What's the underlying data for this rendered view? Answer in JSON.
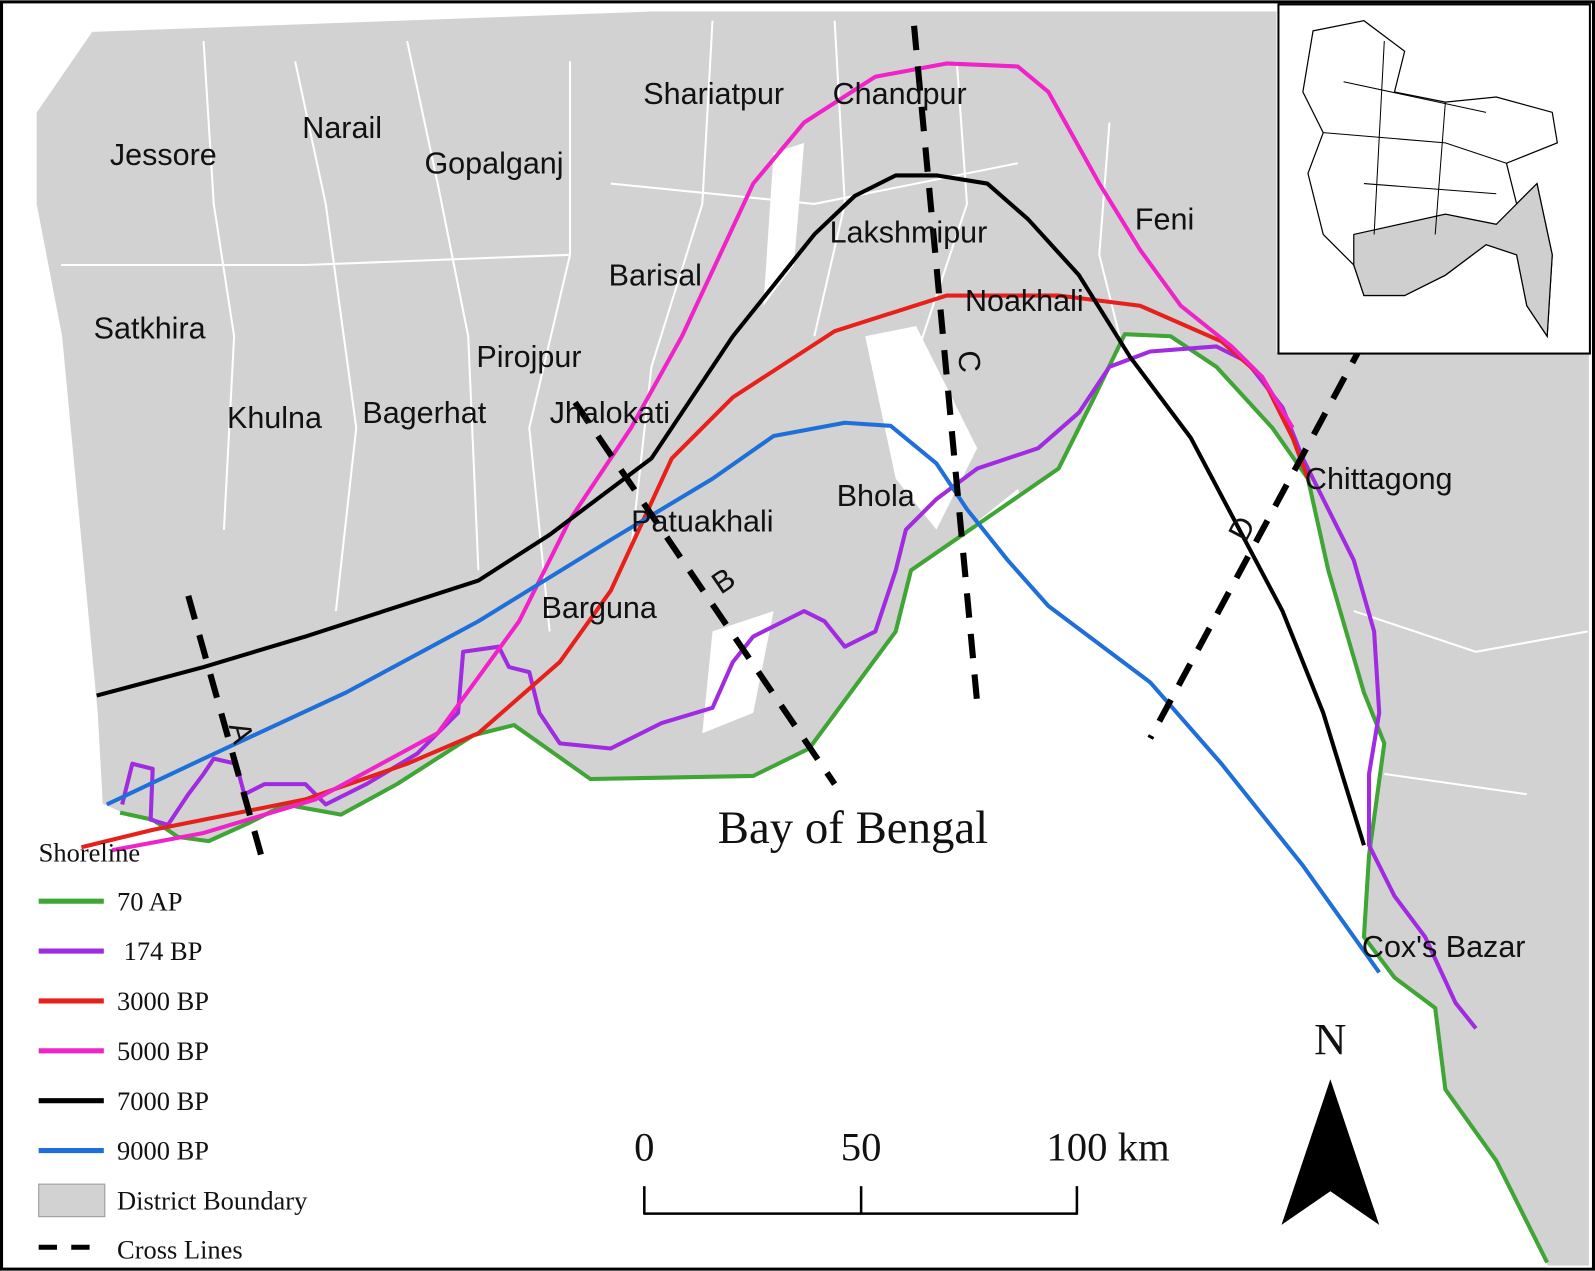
{
  "map": {
    "districts": [
      "Jessore",
      "Narail",
      "Gopalganj",
      "Shariatpur",
      "Chandpur",
      "Lakshmipur",
      "Feni",
      "Barisal",
      "Noakhali",
      "Satkhira",
      "Pirojpur",
      "Khulna",
      "Bagerhat",
      "Jhalokati",
      "Chittagong",
      "Bhola",
      "Patuakhali",
      "Barguna",
      "Cox's Bazar"
    ],
    "cross_lines": [
      "A",
      "B",
      "C",
      "D"
    ],
    "sea_label": "Bay of Bengal",
    "legend": {
      "title": "Shoreline",
      "items": [
        {
          "label": "70 AP",
          "color": "#3fa535"
        },
        {
          "label": " 174 BP",
          "color": "#a02be0"
        },
        {
          "label": "3000 BP",
          "color": "#e8201c"
        },
        {
          "label": "5000 BP",
          "color": "#ef23c8"
        },
        {
          "label": "7000 BP",
          "color": "#000000"
        },
        {
          "label": "9000 BP",
          "color": "#1f6fd8"
        }
      ],
      "district_boundary": "District Boundary",
      "cross_lines": "Cross Lines"
    },
    "scale_bar": [
      "0",
      "50",
      "100 km"
    ],
    "north": "N"
  }
}
